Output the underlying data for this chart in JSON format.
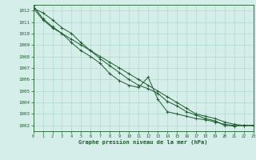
{
  "xlabel": "Graphe pression niveau de la mer (hPa)",
  "xlim": [
    0,
    23
  ],
  "ylim": [
    1001.5,
    1012.5
  ],
  "yticks": [
    1002,
    1003,
    1004,
    1005,
    1006,
    1007,
    1008,
    1009,
    1010,
    1011,
    1012
  ],
  "xticks": [
    0,
    1,
    2,
    3,
    4,
    5,
    6,
    7,
    8,
    9,
    10,
    11,
    12,
    13,
    14,
    15,
    16,
    17,
    18,
    19,
    20,
    21,
    22,
    23
  ],
  "background_color": "#d6eeea",
  "grid_color": "#b0d8cc",
  "line_color": "#1a5c2a",
  "line1_x": [
    0,
    1,
    2,
    3,
    4,
    5,
    6,
    7,
    8,
    9,
    10,
    11,
    12,
    13,
    14,
    15,
    16,
    17,
    18,
    19,
    20,
    21,
    22,
    23
  ],
  "line1_y": [
    1012.2,
    1011.8,
    1011.2,
    1010.5,
    1010.0,
    1009.2,
    1008.5,
    1007.8,
    1007.2,
    1006.6,
    1006.0,
    1005.5,
    1005.2,
    1004.8,
    1004.1,
    1003.7,
    1003.2,
    1002.9,
    1002.6,
    1002.4,
    1002.0,
    1001.95,
    1002.0,
    1002.0
  ],
  "line2_x": [
    0,
    1,
    2,
    3,
    4,
    5,
    6,
    7,
    8,
    9,
    10,
    11,
    12,
    13,
    14,
    15,
    16,
    17,
    18,
    19,
    20,
    21,
    22,
    23
  ],
  "line2_y": [
    1012.4,
    1011.3,
    1010.6,
    1010.0,
    1009.2,
    1008.5,
    1008.0,
    1007.4,
    1006.5,
    1005.9,
    1005.5,
    1005.3,
    1006.2,
    1004.3,
    1003.2,
    1003.0,
    1002.8,
    1002.6,
    1002.5,
    1002.3,
    1002.1,
    1002.0,
    1002.0,
    1002.0
  ],
  "line3_x": [
    0,
    1,
    2,
    3,
    4,
    5,
    6,
    7,
    8,
    9,
    10,
    11,
    12,
    13,
    14,
    15,
    16,
    17,
    18,
    19,
    20,
    21,
    22,
    23
  ],
  "line3_y": [
    1012.2,
    1011.2,
    1010.5,
    1010.0,
    1009.5,
    1009.0,
    1008.5,
    1008.0,
    1007.5,
    1007.0,
    1006.5,
    1006.0,
    1005.5,
    1005.0,
    1004.5,
    1004.0,
    1003.5,
    1003.0,
    1002.8,
    1002.6,
    1002.3,
    1002.1,
    1002.0,
    1002.0
  ]
}
